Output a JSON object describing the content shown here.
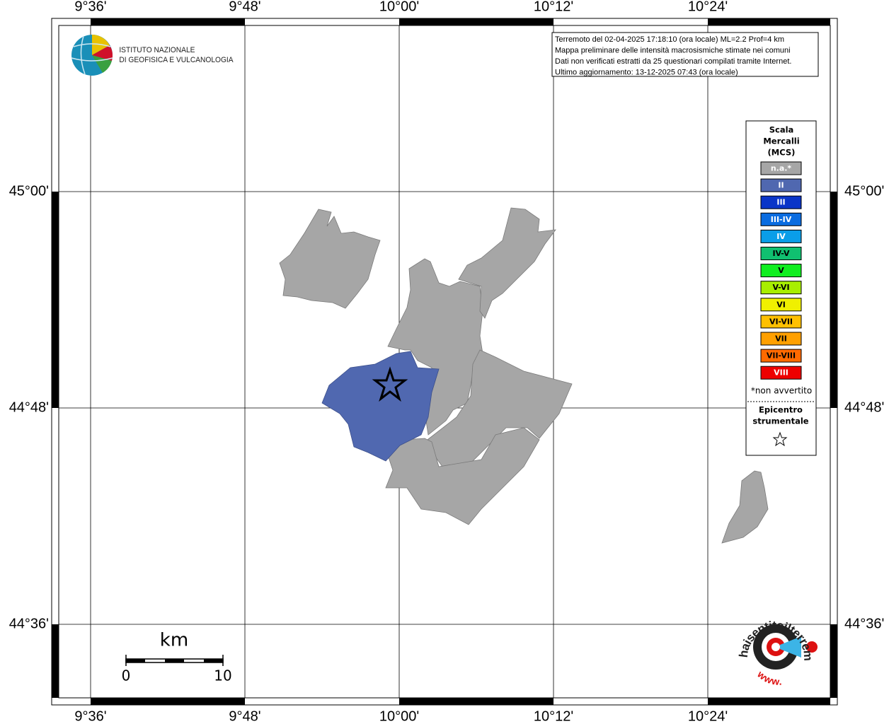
{
  "map": {
    "lon_labels": [
      "9°36'",
      "9°48'",
      "10°00'",
      "10°12'",
      "10°24'"
    ],
    "lat_labels": [
      "45°00'",
      "44°48'",
      "44°36'"
    ]
  },
  "logo": {
    "line1": "ISTITUTO NAZIONALE",
    "line2": "DI GEOFISICA E VULCANOLOGIA"
  },
  "info": {
    "lines": [
      "Terremoto del 02-04-2025 17:18:10 (ora locale) ML=2.2 Prof=4 km",
      "Mappa preliminare delle intensità macrosismiche stimate nei comuni",
      "Dati non verificati estratti da 25 questionari compilati tramite Internet.",
      "Ultimo aggiornamento: 13-12-2025 07:43 (ora locale)"
    ]
  },
  "legend": {
    "title": [
      "Scala",
      "Mercalli",
      "(MCS)"
    ],
    "items": [
      {
        "label": "n.a.*",
        "color": "#a6a6a6",
        "text_color": "#ffffff"
      },
      {
        "label": "II",
        "color": "#5068b0",
        "text_color": "#ffffff"
      },
      {
        "label": "III",
        "color": "#0a35c8",
        "text_color": "#ffffff"
      },
      {
        "label": "III-IV",
        "color": "#0a6ce0",
        "text_color": "#ffffff"
      },
      {
        "label": "IV",
        "color": "#0a9ee8",
        "text_color": "#ffffff"
      },
      {
        "label": "IV-V",
        "color": "#10c070",
        "text_color": "#000000"
      },
      {
        "label": "V",
        "color": "#10ee20",
        "text_color": "#000000"
      },
      {
        "label": "V-VI",
        "color": "#a8ee00",
        "text_color": "#000000"
      },
      {
        "label": "VI",
        "color": "#f0f000",
        "text_color": "#000000"
      },
      {
        "label": "VI-VII",
        "color": "#ffc000",
        "text_color": "#000000"
      },
      {
        "label": "VII",
        "color": "#ffa000",
        "text_color": "#000000"
      },
      {
        "label": "VII-VIII",
        "color": "#ff6a00",
        "text_color": "#000000"
      },
      {
        "label": "VIII",
        "color": "#ee0000",
        "text_color": "#ffffff"
      }
    ],
    "note": "*non avvertito",
    "epicenter": [
      "Epicentro",
      "strumentale"
    ]
  },
  "scale_bar": {
    "unit": "km",
    "labels": [
      "0",
      "10"
    ]
  },
  "site_logo": {
    "text": "haisentitoilterremoto.it",
    "prefix": "www."
  }
}
